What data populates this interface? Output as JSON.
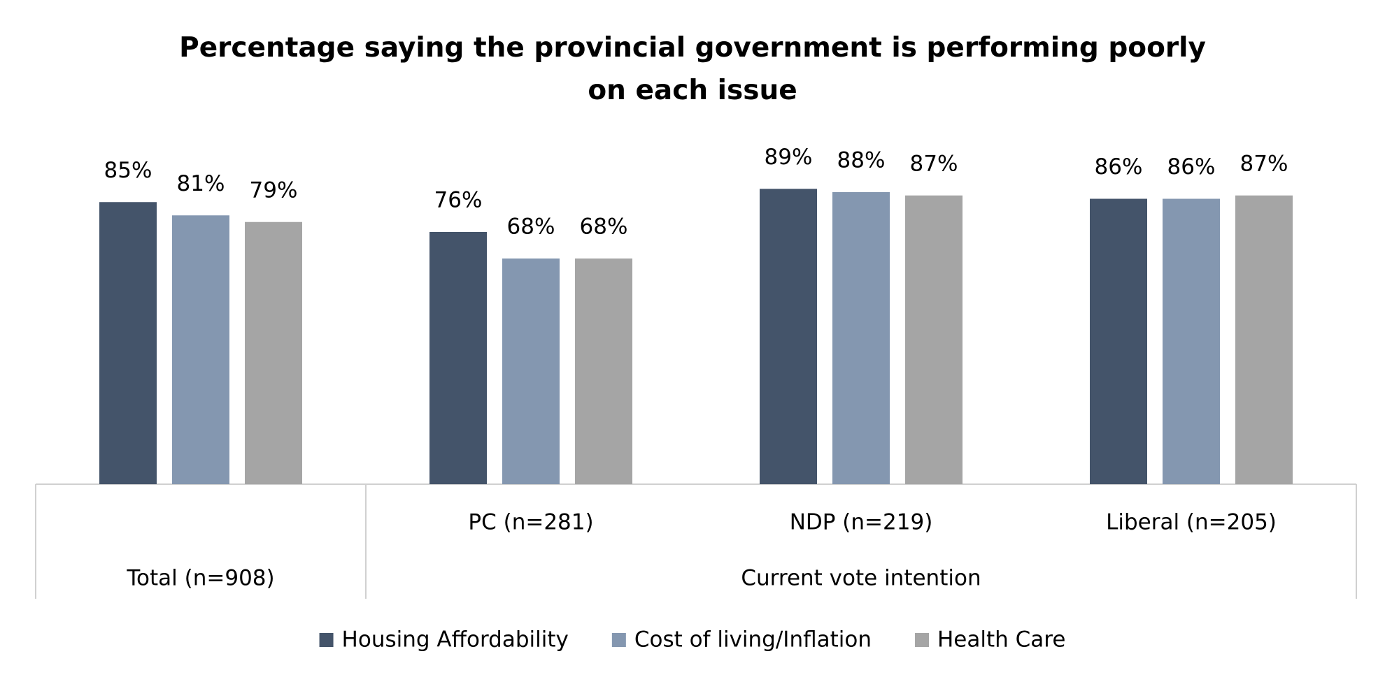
{
  "chart_data": {
    "type": "bar",
    "title": "Percentage saying the provincial government is performing poorly on each issue",
    "categories": [
      "Total (n=908)",
      "PC (n=281)",
      "NDP (n=219)",
      "Liberal (n=205)"
    ],
    "group_label": "Current vote intention",
    "ylim": [
      0,
      100
    ],
    "legend": "bottom",
    "series": [
      {
        "name": "Housing Affordability",
        "color": "#44546a",
        "values": [
          85,
          76,
          89,
          86
        ],
        "value_labels": [
          "85%",
          "76%",
          "89%",
          "86%"
        ]
      },
      {
        "name": "Cost of living/Inflation",
        "color": "#8497b0",
        "values": [
          81,
          68,
          88,
          86
        ],
        "value_labels": [
          "81%",
          "68%",
          "88%",
          "86%"
        ]
      },
      {
        "name": "Health Care",
        "color": "#a5a5a5",
        "values": [
          79,
          68,
          87,
          87
        ],
        "value_labels": [
          "79%",
          "68%",
          "87%",
          "87%"
        ]
      }
    ]
  }
}
